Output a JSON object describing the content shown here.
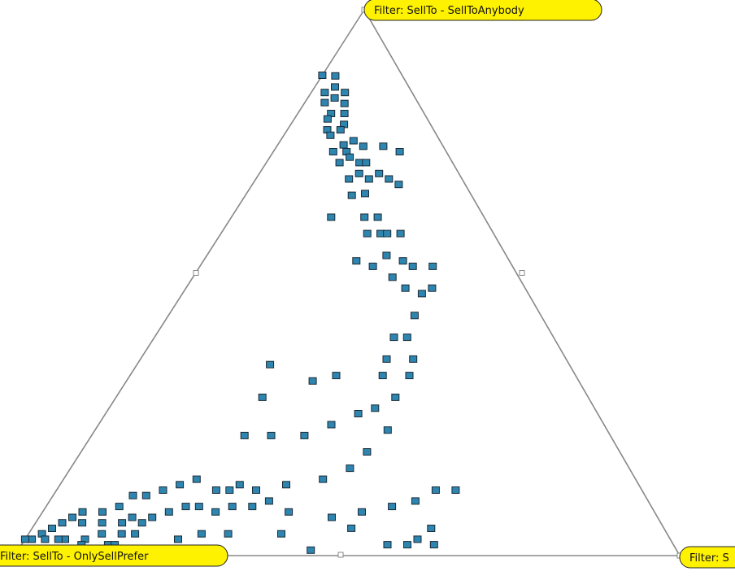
{
  "chart_data": {
    "type": "scatter",
    "subtype": "ternary",
    "title": "",
    "vertices": [
      {
        "key": "top",
        "label": "Filter: SellTo - SellToAnybody"
      },
      {
        "key": "left",
        "label": "Filter: SellTo - OnlySellPrefer"
      },
      {
        "key": "right",
        "label": "Filter: S"
      }
    ],
    "components_order": [
      "left",
      "right",
      "top"
    ],
    "marker": {
      "shape": "square",
      "color": "#2e86b0",
      "edge": "#1a2a36"
    },
    "points": [
      [
        0.12,
        0.0,
        0.88
      ],
      [
        0.1,
        0.02,
        0.87
      ],
      [
        0.11,
        0.03,
        0.85
      ],
      [
        0.1,
        0.05,
        0.84
      ],
      [
        0.13,
        0.02,
        0.84
      ],
      [
        0.12,
        0.04,
        0.83
      ],
      [
        0.14,
        0.03,
        0.83
      ],
      [
        0.11,
        0.06,
        0.82
      ],
      [
        0.14,
        0.05,
        0.81
      ],
      [
        0.12,
        0.07,
        0.81
      ],
      [
        0.15,
        0.05,
        0.8
      ],
      [
        0.13,
        0.08,
        0.79
      ],
      [
        0.16,
        0.06,
        0.78
      ],
      [
        0.14,
        0.08,
        0.78
      ],
      [
        0.16,
        0.07,
        0.77
      ],
      [
        0.15,
        0.1,
        0.76
      ],
      [
        0.13,
        0.11,
        0.76
      ],
      [
        0.17,
        0.09,
        0.74
      ],
      [
        0.15,
        0.11,
        0.74
      ],
      [
        0.12,
        0.13,
        0.75
      ],
      [
        0.15,
        0.12,
        0.73
      ],
      [
        0.17,
        0.11,
        0.72
      ],
      [
        0.14,
        0.14,
        0.72
      ],
      [
        0.13,
        0.15,
        0.72
      ],
      [
        0.07,
        0.19,
        0.74
      ],
      [
        0.15,
        0.15,
        0.7
      ],
      [
        0.17,
        0.14,
        0.69
      ],
      [
        0.14,
        0.17,
        0.69
      ],
      [
        0.12,
        0.18,
        0.7
      ],
      [
        0.16,
        0.18,
        0.67
      ],
      [
        0.18,
        0.16,
        0.66
      ],
      [
        0.1,
        0.22,
        0.68
      ],
      [
        0.23,
        0.15,
        0.62
      ],
      [
        0.18,
        0.2,
        0.62
      ],
      [
        0.16,
        0.22,
        0.62
      ],
      [
        0.17,
        0.24,
        0.59
      ],
      [
        0.19,
        0.22,
        0.59
      ],
      [
        0.16,
        0.25,
        0.59
      ],
      [
        0.14,
        0.27,
        0.59
      ],
      [
        0.18,
        0.27,
        0.55
      ],
      [
        0.23,
        0.23,
        0.54
      ],
      [
        0.21,
        0.26,
        0.53
      ],
      [
        0.16,
        0.3,
        0.54
      ],
      [
        0.19,
        0.3,
        0.51
      ],
      [
        0.15,
        0.32,
        0.53
      ],
      [
        0.18,
        0.33,
        0.49
      ],
      [
        0.12,
        0.35,
        0.53
      ],
      [
        0.16,
        0.36,
        0.48
      ],
      [
        0.19,
        0.37,
        0.44
      ],
      [
        0.14,
        0.37,
        0.49
      ],
      [
        0.24,
        0.36,
        0.4
      ],
      [
        0.27,
        0.37,
        0.36
      ],
      [
        0.29,
        0.38,
        0.33
      ],
      [
        0.22,
        0.38,
        0.4
      ],
      [
        0.36,
        0.31,
        0.33
      ],
      [
        0.4,
        0.28,
        0.32
      ],
      [
        0.45,
        0.2,
        0.35
      ],
      [
        0.49,
        0.22,
        0.29
      ],
      [
        0.55,
        0.23,
        0.22
      ],
      [
        0.51,
        0.27,
        0.22
      ],
      [
        0.46,
        0.32,
        0.22
      ],
      [
        0.41,
        0.35,
        0.24
      ],
      [
        0.36,
        0.38,
        0.26
      ],
      [
        0.33,
        0.4,
        0.27
      ],
      [
        0.29,
        0.42,
        0.29
      ],
      [
        0.25,
        0.42,
        0.33
      ],
      [
        0.23,
        0.41,
        0.36
      ],
      [
        0.33,
        0.44,
        0.23
      ],
      [
        0.38,
        0.43,
        0.19
      ],
      [
        0.42,
        0.42,
        0.16
      ],
      [
        0.47,
        0.39,
        0.14
      ],
      [
        0.53,
        0.34,
        0.13
      ],
      [
        0.58,
        0.3,
        0.12
      ],
      [
        0.6,
        0.27,
        0.13
      ],
      [
        0.62,
        0.26,
        0.12
      ],
      [
        0.64,
        0.24,
        0.12
      ],
      [
        0.55,
        0.37,
        0.08
      ],
      [
        0.49,
        0.44,
        0.07
      ],
      [
        0.44,
        0.48,
        0.08
      ],
      [
        0.39,
        0.52,
        0.09
      ],
      [
        0.35,
        0.55,
        0.1
      ],
      [
        0.31,
        0.57,
        0.12
      ],
      [
        0.28,
        0.6,
        0.12
      ],
      [
        0.35,
        0.6,
        0.05
      ],
      [
        0.43,
        0.55,
        0.02
      ],
      [
        0.4,
        0.58,
        0.02
      ],
      [
        0.36,
        0.62,
        0.02
      ],
      [
        0.38,
        0.59,
        0.03
      ],
      [
        0.47,
        0.48,
        0.05
      ],
      [
        0.58,
        0.38,
        0.04
      ],
      [
        0.66,
        0.3,
        0.04
      ],
      [
        0.7,
        0.26,
        0.04
      ],
      [
        0.74,
        0.23,
        0.03
      ],
      [
        0.78,
        0.16,
        0.06
      ],
      [
        0.76,
        0.17,
        0.07
      ],
      [
        0.73,
        0.19,
        0.08
      ],
      [
        0.7,
        0.21,
        0.09
      ],
      [
        0.68,
        0.23,
        0.09
      ],
      [
        0.66,
        0.26,
        0.08
      ],
      [
        0.63,
        0.28,
        0.09
      ],
      [
        0.6,
        0.31,
        0.09
      ],
      [
        0.57,
        0.33,
        0.1
      ],
      [
        0.66,
        0.2,
        0.14
      ],
      [
        0.69,
        0.18,
        0.13
      ],
      [
        0.72,
        0.16,
        0.12
      ],
      [
        0.75,
        0.14,
        0.11
      ],
      [
        0.77,
        0.12,
        0.11
      ],
      [
        0.8,
        0.11,
        0.09
      ],
      [
        0.83,
        0.09,
        0.08
      ],
      [
        0.86,
        0.06,
        0.08
      ],
      [
        0.88,
        0.05,
        0.07
      ],
      [
        0.9,
        0.04,
        0.06
      ],
      [
        0.92,
        0.03,
        0.05
      ],
      [
        0.94,
        0.02,
        0.04
      ],
      [
        0.96,
        0.01,
        0.03
      ],
      [
        0.97,
        0.0,
        0.03
      ],
      [
        0.94,
        0.03,
        0.03
      ],
      [
        0.91,
        0.06,
        0.03
      ],
      [
        0.88,
        0.09,
        0.03
      ],
      [
        0.85,
        0.11,
        0.04
      ],
      [
        0.82,
        0.14,
        0.04
      ],
      [
        0.8,
        0.16,
        0.04
      ],
      [
        0.85,
        0.13,
        0.02
      ],
      [
        0.89,
        0.09,
        0.02
      ],
      [
        0.84,
        0.1,
        0.06
      ],
      [
        0.87,
        0.07,
        0.06
      ],
      [
        0.84,
        0.14,
        0.02
      ],
      [
        0.81,
        0.13,
        0.06
      ],
      [
        0.79,
        0.14,
        0.07
      ],
      [
        0.92,
        0.05,
        0.03
      ],
      [
        0.95,
        0.04,
        0.01
      ],
      [
        0.81,
        0.18,
        0.01
      ],
      [
        0.55,
        0.44,
        0.01
      ],
      [
        0.09,
        0.16,
        0.75
      ],
      [
        0.11,
        0.2,
        0.69
      ]
    ]
  }
}
